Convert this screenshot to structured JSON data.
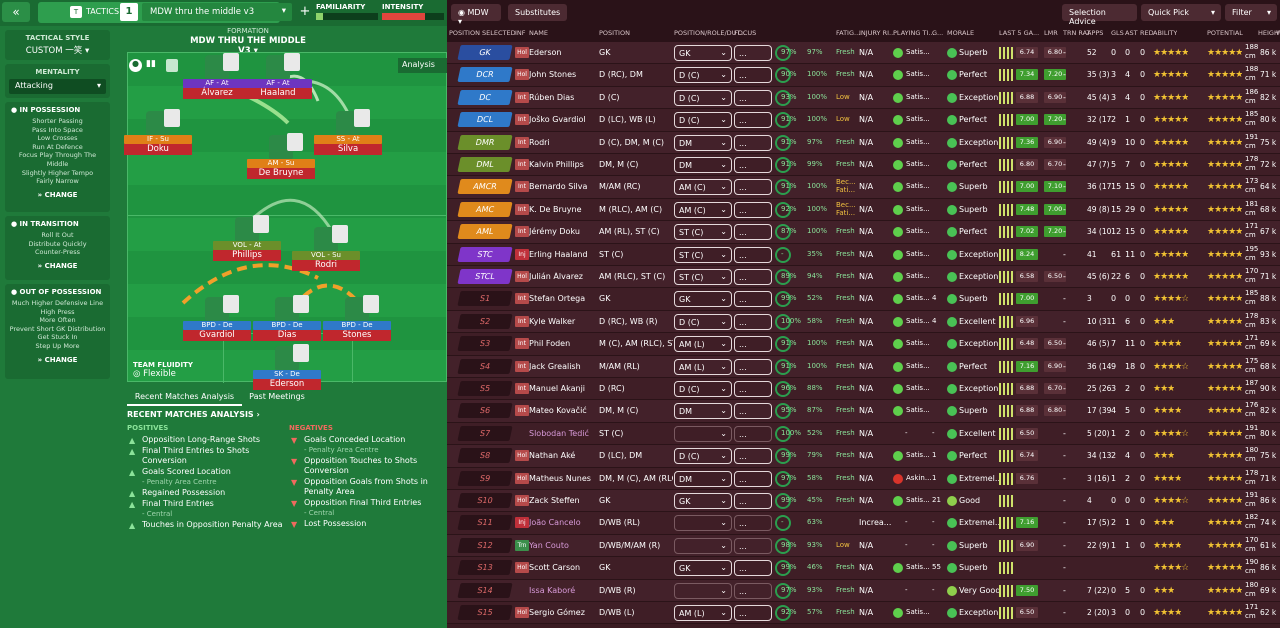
{
  "topbar": {
    "collapse_icon": "«",
    "tactics_label": "TACTICS",
    "tactic_number": "1",
    "tactic_name": "MDW thru the middle v3",
    "add": "+",
    "familiarity": {
      "label": "FAMILIARITY",
      "value_pct": 12
    },
    "intensity": {
      "label": "INTENSITY",
      "value_pct": 70
    }
  },
  "sidebar": {
    "tactical_style": {
      "label": "TACTICAL STYLE",
      "value": "CUSTOM 一笑"
    },
    "mentality": {
      "label": "MENTALITY",
      "value": "Attacking"
    },
    "in_possession": {
      "title": "IN POSSESSION",
      "items": [
        "Shorter Passing",
        "Pass Into Space",
        "Low Crosses",
        "Run At Defence",
        "Focus Play Through The Middle",
        "Slightly Higher Tempo",
        "Fairly Narrow"
      ],
      "change": "CHANGE"
    },
    "in_transition": {
      "title": "IN TRANSITION",
      "items": [
        "Roll It Out",
        "Distribute Quickly",
        "Counter-Press"
      ],
      "change": "CHANGE"
    },
    "out_of_possession": {
      "title": "OUT OF POSSESSION",
      "items": [
        "Much Higher Defensive Line",
        "High Press",
        "More Often",
        "Prevent Short GK Distribution",
        "Get Stuck In",
        "Step Up More"
      ],
      "change": "CHANGE"
    }
  },
  "formation": {
    "label": "FORMATION",
    "name": "MDW THRU THE MIDDLE V3",
    "analysis": "Analysis",
    "fluidity_label": "TEAM FLUIDITY",
    "fluidity": "Flexible"
  },
  "pitch_players": [
    {
      "role": "AF - At",
      "name": "Álvarez"
    },
    {
      "role": "AF - At",
      "name": "Haaland"
    },
    {
      "role": "IF - Su",
      "name": "Doku"
    },
    {
      "role": "AM - Su",
      "name": "De Bruyne"
    },
    {
      "role": "SS - At",
      "name": "Silva"
    },
    {
      "role": "VOL - At",
      "name": "Phillips"
    },
    {
      "role": "VOL - Su",
      "name": "Rodri"
    },
    {
      "role": "BPD - De",
      "name": "Gvardiol"
    },
    {
      "role": "BPD - De",
      "name": "Dias"
    },
    {
      "role": "BPD - De",
      "name": "Stones"
    },
    {
      "role": "SK - De",
      "name": "Ederson"
    }
  ],
  "tabs": {
    "recent": "Recent Matches Analysis",
    "past": "Past Meetings"
  },
  "analysis": {
    "title": "RECENT MATCHES ANALYSIS ›",
    "pos_label": "POSITIVES",
    "neg_label": "NEGATIVES",
    "positives": [
      {
        "t": "Opposition Long-Range Shots",
        "s": ""
      },
      {
        "t": "Final Third Entries to Shots Conversion",
        "s": ""
      },
      {
        "t": "Goals Scored Location",
        "s": "- Penalty Area Centre"
      },
      {
        "t": "Regained Possession",
        "s": ""
      },
      {
        "t": "Final Third Entries",
        "s": "- Central"
      },
      {
        "t": "Touches in Opposition Penalty Area",
        "s": ""
      }
    ],
    "negatives": [
      {
        "t": "Goals Conceded Location",
        "s": "- Penalty Area Centre"
      },
      {
        "t": "Opposition Touches to Shots Conversion",
        "s": ""
      },
      {
        "t": "Opposition Goals from Shots in Penalty Area",
        "s": ""
      },
      {
        "t": "Opposition Final Third Entries",
        "s": "- Central"
      },
      {
        "t": "Lost Possession",
        "s": ""
      }
    ]
  },
  "right_top": {
    "view": "MDW",
    "substitutes": "Substitutes",
    "selection_advice": "Selection Advice",
    "quick_pick": "Quick Pick",
    "filter": "Filter"
  },
  "columns": [
    "POSITION SELECTED",
    "INF",
    "NAME",
    "POSITION",
    "POSITION/ROLE/DUT...",
    "FOCUS",
    "",
    "FATIG...",
    "INJURY RI...",
    "PLAYING TI...",
    "G...",
    "MORALE",
    "LAST 5 GA...",
    "LMR",
    "TRN RAT",
    "APPS",
    "GLS",
    "AST",
    "RED",
    "ABILITY",
    "POTENTIAL",
    "HEIGHT",
    "WEIG"
  ],
  "players": [
    {
      "sel": "GK",
      "inf": "Hol",
      "name": "Ederson",
      "pos": "GK",
      "role": "GK",
      "fam": "97%",
      "con": "97%",
      "fat": "Fresh",
      "inj": "N/A",
      "pt": "Satis...",
      "g": "",
      "mor": "Superb",
      "lm": "6.74",
      "tr": "6.80",
      "apps": "52",
      "gls": "0",
      "ast": "0",
      "red": "0",
      "height": "188 cm",
      "weight": "86 k"
    },
    {
      "sel": "DCR",
      "inf": "Hol",
      "name": "John Stones",
      "pos": "D (RC), DM",
      "role": "D (C)",
      "fam": "90%",
      "con": "100%",
      "fat": "Fresh",
      "inj": "N/A",
      "pt": "Satis...",
      "g": "",
      "mor": "Perfect",
      "lm": "7.34",
      "tr": "7.20",
      "apps": "35 (3)",
      "gls": "3",
      "ast": "4",
      "red": "0",
      "height": "188 cm",
      "weight": "71 k"
    },
    {
      "sel": "DC",
      "inf": "Int",
      "name": "Rúben Dias",
      "pos": "D (C)",
      "role": "D (C)",
      "fam": "93%",
      "con": "100%",
      "fat": "Low",
      "inj": "N/A",
      "pt": "Satis...",
      "g": "",
      "mor": "Exception...",
      "lm": "6.88",
      "tr": "6.90",
      "apps": "45 (4)",
      "gls": "3",
      "ast": "4",
      "red": "0",
      "height": "186 cm",
      "weight": "82 k"
    },
    {
      "sel": "DCL",
      "inf": "Int",
      "name": "Joško Gvardiol",
      "pos": "D (LC), WB (L)",
      "role": "D (C)",
      "fam": "91%",
      "con": "100%",
      "fat": "Low",
      "inj": "N/A",
      "pt": "Satis...",
      "g": "",
      "mor": "Perfect",
      "lm": "7.00",
      "tr": "7.20",
      "apps": "32 (17)",
      "gls": "2",
      "ast": "1",
      "red": "0",
      "height": "185 cm",
      "weight": "80 k"
    },
    {
      "sel": "DMR",
      "inf": "Int",
      "name": "Rodri",
      "pos": "D (C), DM, M (C)",
      "role": "DM",
      "fam": "91%",
      "con": "97%",
      "fat": "Fresh",
      "inj": "N/A",
      "pt": "Satis...",
      "g": "",
      "mor": "Exception...",
      "lm": "7.36",
      "tr": "6.90",
      "apps": "49 (4)",
      "gls": "9",
      "ast": "10",
      "red": "0",
      "height": "191 cm",
      "weight": "75 k"
    },
    {
      "sel": "DML",
      "inf": "Int",
      "name": "Kalvin Phillips",
      "pos": "DM, M (C)",
      "role": "DM",
      "fam": "91%",
      "con": "99%",
      "fat": "Fresh",
      "inj": "N/A",
      "pt": "Satis...",
      "g": "",
      "mor": "Perfect",
      "lm": "6.80",
      "tr": "6.70",
      "apps": "47 (7)",
      "gls": "5",
      "ast": "7",
      "red": "0",
      "height": "178 cm",
      "weight": "72 k"
    },
    {
      "sel": "AMCR",
      "inf": "Int",
      "name": "Bernardo Silva",
      "pos": "M/AM (RC)",
      "role": "AM (C)",
      "fam": "91%",
      "con": "100%",
      "fat": "Bec... Fati...",
      "inj": "N/A",
      "pt": "Satis...",
      "g": "",
      "mor": "Superb",
      "lm": "7.00",
      "tr": "7.10",
      "apps": "36 (17)",
      "gls": "15",
      "ast": "15",
      "red": "0",
      "height": "173 cm",
      "weight": "64 k"
    },
    {
      "sel": "AMC",
      "inf": "Int",
      "name": "K. De Bruyne",
      "pos": "M (RLC), AM (C)",
      "role": "AM (C)",
      "fam": "92%",
      "con": "100%",
      "fat": "Bec... Fati...",
      "inj": "N/A",
      "pt": "Satis...",
      "g": "",
      "mor": "Superb",
      "lm": "7.48",
      "tr": "7.00",
      "apps": "49 (8)",
      "gls": "15",
      "ast": "29",
      "red": "0",
      "height": "181 cm",
      "weight": "68 k"
    },
    {
      "sel": "AML",
      "inf": "Int",
      "name": "Jérémy Doku",
      "pos": "AM (RL), ST (C)",
      "role": "ST (C)",
      "fam": "87%",
      "con": "100%",
      "fat": "Fresh",
      "inj": "N/A",
      "pt": "Satis...",
      "g": "",
      "mor": "Perfect",
      "lm": "7.02",
      "tr": "7.20",
      "apps": "34 (10)",
      "gls": "12",
      "ast": "15",
      "red": "0",
      "height": "171 cm",
      "weight": "67 k"
    },
    {
      "sel": "STC",
      "inf": "Inj",
      "name": "Erling Haaland",
      "pos": "ST (C)",
      "role": "ST (C)",
      "fam": "-",
      "con": "35%",
      "fat": "Fresh",
      "inj": "N/A",
      "pt": "Satis...",
      "g": "",
      "mor": "Exception...",
      "lm": "8.24",
      "tr": "",
      "apps": "41",
      "gls": "61",
      "ast": "11",
      "red": "0",
      "height": "195 cm",
      "weight": "93 k"
    },
    {
      "sel": "STCL",
      "inf": "Hol",
      "name": "Julián Álvarez",
      "pos": "AM (RLC), ST (C)",
      "role": "ST (C)",
      "fam": "89%",
      "con": "94%",
      "fat": "Fresh",
      "inj": "N/A",
      "pt": "Satis...",
      "g": "",
      "mor": "Exception...",
      "lm": "6.58",
      "tr": "6.50",
      "apps": "45 (6)",
      "gls": "22",
      "ast": "6",
      "red": "0",
      "height": "170 cm",
      "weight": "71 k"
    },
    {
      "sel": "S1",
      "inf": "Int",
      "name": "Stefan Ortega",
      "pos": "GK",
      "role": "GK",
      "fam": "99%",
      "con": "52%",
      "fat": "Fresh",
      "inj": "N/A",
      "pt": "Satis...",
      "g": "4",
      "mor": "Superb",
      "lm": "7.00",
      "tr": "",
      "apps": "3",
      "gls": "0",
      "ast": "0",
      "red": "0",
      "height": "185 cm",
      "weight": "88 k"
    },
    {
      "sel": "S2",
      "inf": "Int",
      "name": "Kyle Walker",
      "pos": "D (RC), WB (R)",
      "role": "D (C)",
      "fam": "100%",
      "con": "58%",
      "fat": "Fresh",
      "inj": "N/A",
      "pt": "Satis...",
      "g": "4",
      "mor": "Excellent",
      "lm": "6.96",
      "tr": "",
      "apps": "10 (31)",
      "gls": "1",
      "ast": "6",
      "red": "0",
      "height": "178 cm",
      "weight": "83 k"
    },
    {
      "sel": "S3",
      "inf": "Int",
      "name": "Phil Foden",
      "pos": "M (C), AM (RLC), ST...",
      "role": "AM (L)",
      "fam": "91%",
      "con": "100%",
      "fat": "Fresh",
      "inj": "N/A",
      "pt": "Satis...",
      "g": "",
      "mor": "Exception...",
      "lm": "6.48",
      "tr": "6.50",
      "apps": "46 (5)",
      "gls": "7",
      "ast": "11",
      "red": "0",
      "height": "171 cm",
      "weight": "69 k"
    },
    {
      "sel": "S4",
      "inf": "Int",
      "name": "Jack Grealish",
      "pos": "M/AM (RL)",
      "role": "AM (L)",
      "fam": "91%",
      "con": "100%",
      "fat": "Fresh",
      "inj": "N/A",
      "pt": "Satis...",
      "g": "",
      "mor": "Perfect",
      "lm": "7.16",
      "tr": "6.90",
      "apps": "36 (14)",
      "gls": "9",
      "ast": "18",
      "red": "0",
      "height": "175 cm",
      "weight": "68 k"
    },
    {
      "sel": "S5",
      "inf": "Int",
      "name": "Manuel Akanji",
      "pos": "D (RC)",
      "role": "D (C)",
      "fam": "96%",
      "con": "88%",
      "fat": "Fresh",
      "inj": "N/A",
      "pt": "Satis...",
      "g": "",
      "mor": "Exception...",
      "lm": "6.88",
      "tr": "6.70",
      "apps": "25 (26)",
      "gls": "3",
      "ast": "2",
      "red": "0",
      "height": "187 cm",
      "weight": "90 k"
    },
    {
      "sel": "S6",
      "inf": "Int",
      "name": "Mateo Kovačić",
      "pos": "DM, M (C)",
      "role": "DM",
      "fam": "95%",
      "con": "87%",
      "fat": "Fresh",
      "inj": "N/A",
      "pt": "Satis...",
      "g": "",
      "mor": "Superb",
      "lm": "6.88",
      "tr": "6.80",
      "apps": "17 (39)",
      "gls": "4",
      "ast": "5",
      "red": "0",
      "height": "176 cm",
      "weight": "82 k"
    },
    {
      "sel": "S7",
      "inf": "",
      "name": "Slobodan Tedić",
      "pos": "ST (C)",
      "role": "",
      "fam": "100%",
      "con": "52%",
      "fat": "Fresh",
      "inj": "N/A",
      "pt": "-",
      "g": "-",
      "mor": "Excellent",
      "lm": "6.50",
      "tr": "",
      "apps": "5 (20)",
      "gls": "1",
      "ast": "2",
      "red": "0",
      "height": "191 cm",
      "weight": "80 k"
    },
    {
      "sel": "S8",
      "inf": "Hol",
      "name": "Nathan Aké",
      "pos": "D (LC), DM",
      "role": "D (C)",
      "fam": "99%",
      "con": "79%",
      "fat": "Fresh",
      "inj": "N/A",
      "pt": "Satis...",
      "g": "1",
      "mor": "Perfect",
      "lm": "6.74",
      "tr": "",
      "apps": "34 (13)",
      "gls": "2",
      "ast": "4",
      "red": "0",
      "height": "180 cm",
      "weight": "75 k"
    },
    {
      "sel": "S9",
      "inf": "Hol",
      "name": "Matheus Nunes",
      "pos": "DM, M (C), AM (RLC)",
      "role": "DM",
      "fam": "97%",
      "con": "58%",
      "fat": "Fresh",
      "inj": "N/A",
      "pt": "Askin...",
      "g": "1",
      "mor": "Extremel...",
      "lm": "6.76",
      "tr": "",
      "apps": "3 (16)",
      "gls": "1",
      "ast": "2",
      "red": "0",
      "height": "178 cm",
      "weight": "71 k"
    },
    {
      "sel": "S10",
      "inf": "Hol",
      "name": "Zack Steffen",
      "pos": "GK",
      "role": "GK",
      "fam": "99%",
      "con": "45%",
      "fat": "Fresh",
      "inj": "N/A",
      "pt": "Satis...",
      "g": "21",
      "mor": "Good",
      "lm": "",
      "tr": "",
      "apps": "4",
      "gls": "0",
      "ast": "0",
      "red": "0",
      "height": "191 cm",
      "weight": "86 k"
    },
    {
      "sel": "S11",
      "inf": "Inj",
      "name": "João Cancelo",
      "pos": "D/WB (RL)",
      "role": "",
      "fam": "-",
      "con": "63%",
      "fat": "",
      "inj": "Increa...",
      "pt": "-",
      "g": "-",
      "mor": "Extremel...",
      "lm": "7.16",
      "tr": "",
      "apps": "17 (5)",
      "gls": "2",
      "ast": "1",
      "red": "0",
      "height": "182 cm",
      "weight": "74 k"
    },
    {
      "sel": "S12",
      "inf": "Trn",
      "name": "Yan Couto",
      "pos": "D/WB/M/AM (R)",
      "role": "",
      "fam": "98%",
      "con": "93%",
      "fat": "Low",
      "inj": "N/A",
      "pt": "-",
      "g": "-",
      "mor": "Superb",
      "lm": "6.90",
      "tr": "",
      "apps": "22 (9)",
      "gls": "1",
      "ast": "1",
      "red": "0",
      "height": "170 cm",
      "weight": "61 k"
    },
    {
      "sel": "S13",
      "inf": "Hol",
      "name": "Scott Carson",
      "pos": "GK",
      "role": "GK",
      "fam": "99%",
      "con": "46%",
      "fat": "Fresh",
      "inj": "N/A",
      "pt": "Satis...",
      "g": "55",
      "mor": "Superb",
      "lm": "",
      "tr": "",
      "apps": "",
      "gls": "",
      "ast": "",
      "red": "",
      "height": "190 cm",
      "weight": "86 k"
    },
    {
      "sel": "S14",
      "inf": "",
      "name": "Issa Kaboré",
      "pos": "D/WB (R)",
      "role": "",
      "fam": "97%",
      "con": "93%",
      "fat": "Fresh",
      "inj": "N/A",
      "pt": "-",
      "g": "-",
      "mor": "Very Good",
      "lm": "7.50",
      "tr": "",
      "apps": "7 (22)",
      "gls": "0",
      "ast": "5",
      "red": "0",
      "height": "180 cm",
      "weight": "69 k"
    },
    {
      "sel": "S15",
      "inf": "Hol",
      "name": "Sergio Gómez",
      "pos": "D/WB (L)",
      "role": "AM (L)",
      "fam": "92%",
      "con": "57%",
      "fat": "Fresh",
      "inj": "N/A",
      "pt": "Satis...",
      "g": "",
      "mor": "Exception...",
      "lm": "6.50",
      "tr": "",
      "apps": "2 (20)",
      "gls": "3",
      "ast": "0",
      "red": "0",
      "height": "171 cm",
      "weight": "62 k"
    }
  ],
  "colors": {
    "green_bg": "#1f7a3a",
    "red_bg": "#3a1b22",
    "gk": "#c0303a",
    "def": "#2f79c9",
    "dm": "#6b8f2a",
    "am": "#e08a1c",
    "st": "#7f35c9",
    "sub": "#3c2029"
  }
}
